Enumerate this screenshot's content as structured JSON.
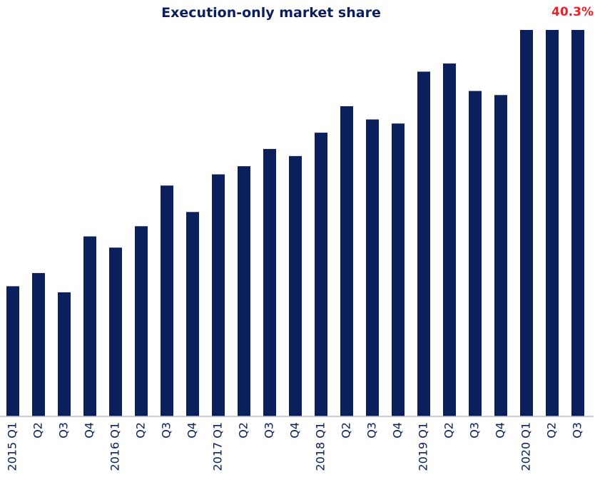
{
  "chart_data": {
    "type": "bar",
    "title": "Execution-only market share",
    "categories": [
      "2015 Q1",
      "Q2",
      "Q3",
      "Q4",
      "2016 Q1",
      "Q2",
      "Q3",
      "Q4",
      "2017 Q1",
      "Q2",
      "Q3",
      "Q4",
      "2018 Q1",
      "Q2",
      "Q3",
      "Q4",
      "2019 Q1",
      "Q2",
      "Q3",
      "Q4",
      "2020 Q1",
      "Q2",
      "Q3"
    ],
    "values": [
      12.8,
      14.1,
      12.2,
      17.7,
      16.6,
      18.7,
      22.7,
      20.1,
      23.8,
      24.6,
      26.3,
      25.6,
      27.9,
      30.5,
      29.2,
      28.8,
      33.9,
      34.7,
      32.0,
      31.6,
      39.0,
      39.5,
      40.3
    ],
    "value_labels": [
      null,
      null,
      null,
      null,
      null,
      null,
      null,
      null,
      null,
      null,
      null,
      null,
      null,
      null,
      null,
      null,
      null,
      null,
      null,
      null,
      null,
      null,
      "40.3%"
    ],
    "color": "#0a1f5c",
    "label_color": "#e8202a",
    "ylim": [
      0,
      38
    ]
  }
}
